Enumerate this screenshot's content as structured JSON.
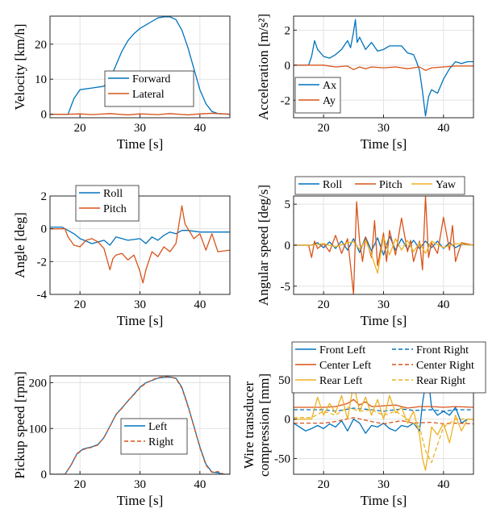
{
  "colors": {
    "blue": "#0072BD",
    "orange": "#D95319",
    "yellow": "#EDB120",
    "grid": "#e2e2e2",
    "frame": "#262626"
  },
  "chart_data": [
    {
      "id": "velocity",
      "type": "line",
      "ylabel": "Velocity [km/h]",
      "xlabel": "Time [s]",
      "xlim": [
        15,
        45
      ],
      "ylim": [
        -1,
        28
      ],
      "xticks": [
        20,
        30,
        40
      ],
      "yticks": [
        0,
        10,
        20
      ],
      "grid": true,
      "legend": "lower-center",
      "series": [
        {
          "name": "Forward",
          "color": "#0072BD",
          "style": "solid",
          "x": [
            15,
            18,
            19,
            20,
            22,
            24,
            25,
            26,
            27,
            28,
            29,
            30,
            31,
            32,
            33,
            34,
            35,
            36,
            37,
            38,
            39,
            40,
            41,
            42,
            43,
            44,
            45
          ],
          "y": [
            0,
            0,
            4.5,
            7,
            7.5,
            8,
            10,
            14,
            18,
            21,
            23,
            24.5,
            25.5,
            26.5,
            27.5,
            27.8,
            27.8,
            27,
            24,
            19,
            13,
            7,
            3,
            0.8,
            0.2,
            0.1,
            0
          ]
        },
        {
          "name": "Lateral",
          "color": "#D95319",
          "style": "solid",
          "x": [
            15,
            18,
            20,
            22,
            25,
            28,
            30,
            33,
            35,
            38,
            40,
            42,
            45
          ],
          "y": [
            0,
            0,
            0.1,
            -0.1,
            0.2,
            -0.2,
            0.1,
            -0.1,
            0.2,
            -0.2,
            0.1,
            0.3,
            0
          ]
        }
      ]
    },
    {
      "id": "acceleration",
      "type": "line",
      "ylabel": "Acceleration [m/s²]",
      "xlabel": "Time [s]",
      "xlim": [
        15,
        45
      ],
      "ylim": [
        -3,
        2.8
      ],
      "xticks": [
        20,
        30,
        40
      ],
      "yticks": [
        -2,
        0,
        2
      ],
      "grid": true,
      "legend": "lower-left",
      "series": [
        {
          "name": "Ax",
          "color": "#0072BD",
          "style": "solid",
          "x": [
            15,
            17.5,
            18,
            18.5,
            19,
            20,
            21,
            22,
            23,
            24,
            24.5,
            25,
            25.3,
            25.6,
            26,
            27,
            28,
            29,
            30,
            31,
            32,
            33,
            34,
            35,
            35.5,
            36,
            36.5,
            37,
            37.5,
            38,
            39,
            40,
            41,
            42,
            43,
            44,
            45
          ],
          "y": [
            0,
            0,
            0.5,
            1.4,
            0.9,
            0.5,
            0.4,
            0.6,
            0.9,
            1.4,
            1.0,
            1.9,
            2.6,
            1.3,
            1.6,
            0.9,
            1.3,
            0.8,
            0.9,
            1.1,
            1.1,
            1.1,
            0.7,
            0.6,
            0.2,
            -0.3,
            -1.5,
            -2.9,
            -1.8,
            -1.4,
            -1.6,
            -0.8,
            -0.2,
            0.2,
            0.1,
            0.2,
            0.2
          ]
        },
        {
          "name": "Ay",
          "color": "#D95319",
          "style": "solid",
          "x": [
            15,
            18,
            20,
            22,
            24,
            25,
            26,
            27,
            28,
            30,
            32,
            34,
            36,
            37,
            38,
            40,
            42,
            45
          ],
          "y": [
            0,
            0,
            0,
            -0.1,
            -0.05,
            -0.25,
            -0.1,
            -0.2,
            -0.1,
            -0.15,
            -0.1,
            -0.2,
            -0.1,
            -0.3,
            -0.15,
            -0.1,
            -0.05,
            -0.05
          ]
        }
      ]
    },
    {
      "id": "angle",
      "type": "line",
      "ylabel": "Angle [deg]",
      "xlabel": "Time [s]",
      "xlim": [
        15,
        45
      ],
      "ylim": [
        -4,
        2
      ],
      "xticks": [
        20,
        30,
        40
      ],
      "yticks": [
        -4,
        -2,
        0,
        2
      ],
      "grid": true,
      "legend": "top-left",
      "series": [
        {
          "name": "Roll",
          "color": "#0072BD",
          "style": "solid",
          "x": [
            15,
            17,
            18,
            19,
            20,
            22,
            24,
            25,
            26,
            28,
            30,
            31,
            32,
            33,
            34,
            35,
            36,
            37,
            38,
            40,
            42,
            45
          ],
          "y": [
            0.1,
            0.1,
            -0.1,
            -0.3,
            -0.6,
            -0.9,
            -0.7,
            -1.0,
            -0.5,
            -0.7,
            -0.6,
            -0.9,
            -0.5,
            -0.7,
            -0.4,
            -0.2,
            -0.3,
            -0.1,
            -0.1,
            -0.2,
            -0.2,
            -0.2
          ]
        },
        {
          "name": "Pitch",
          "color": "#D95319",
          "style": "solid",
          "x": [
            15,
            17.5,
            18,
            19,
            20,
            21,
            22,
            23,
            24,
            25,
            25.5,
            26,
            27,
            28,
            29,
            30,
            30.5,
            31,
            32,
            33,
            34,
            35,
            36,
            37,
            37.5,
            38,
            39,
            40,
            41,
            42,
            43,
            45
          ],
          "y": [
            0,
            0,
            -0.5,
            -1.0,
            -1.1,
            -0.7,
            -0.6,
            -0.8,
            -1.2,
            -2.5,
            -1.8,
            -1.6,
            -1.5,
            -1.9,
            -1.6,
            -2.6,
            -3.3,
            -2.5,
            -1.4,
            -1.7,
            -1.1,
            -1.4,
            -0.9,
            1.4,
            0.3,
            0.0,
            -0.6,
            -0.3,
            -1.3,
            -0.3,
            -1.4,
            -1.3
          ]
        }
      ]
    },
    {
      "id": "angular_speed",
      "type": "line",
      "ylabel": "Angular speed [deg/s]",
      "xlabel": "Time [s]",
      "xlim": [
        15,
        45
      ],
      "ylim": [
        -6,
        6
      ],
      "xticks": [
        20,
        30,
        40
      ],
      "yticks": [
        -5,
        0,
        5
      ],
      "grid": true,
      "legend": "top",
      "series": [
        {
          "name": "Roll",
          "color": "#0072BD",
          "style": "solid",
          "x": [
            15,
            18,
            19,
            20,
            21,
            22,
            23,
            24,
            25,
            26,
            27,
            28,
            29,
            30,
            31,
            32,
            33,
            34,
            35,
            36,
            37,
            38,
            39,
            40,
            41,
            42,
            43,
            45
          ],
          "y": [
            0,
            0,
            0.3,
            -0.3,
            0.4,
            -0.4,
            0.5,
            -0.6,
            0.8,
            -0.9,
            1.0,
            -0.7,
            0.9,
            -1.2,
            1.1,
            -0.6,
            0.8,
            -0.5,
            0.6,
            -0.4,
            0.5,
            -0.3,
            0.5,
            -0.4,
            0.3,
            -0.3,
            0.1,
            0
          ]
        },
        {
          "name": "Pitch",
          "color": "#D95319",
          "style": "solid",
          "x": [
            15,
            17.5,
            18,
            18.5,
            19,
            20,
            21,
            22,
            23,
            24,
            24.5,
            25,
            25.5,
            26,
            26.5,
            27,
            28,
            28.5,
            29,
            30,
            30.5,
            31,
            32,
            33,
            34,
            34.5,
            35,
            36,
            36.5,
            37,
            37.5,
            38,
            39,
            40,
            41,
            41.5,
            42,
            43,
            45
          ],
          "y": [
            0,
            0,
            -1.5,
            0.5,
            -0.4,
            0.2,
            -0.8,
            1.2,
            -1.0,
            0.8,
            -2.5,
            -6.0,
            5.3,
            0.5,
            -2.0,
            1.0,
            -1.5,
            3.0,
            -2.5,
            1.5,
            -2.0,
            1.8,
            -1.2,
            3.3,
            -0.8,
            0.6,
            -2.0,
            0.5,
            -3.0,
            6.0,
            -1.5,
            0.3,
            -1.0,
            3.4,
            -0.6,
            2.4,
            -2.0,
            0.3,
            0
          ]
        },
        {
          "name": "Yaw",
          "color": "#EDB120",
          "style": "solid",
          "x": [
            15,
            18,
            20,
            22,
            24,
            25,
            26,
            27,
            28,
            29,
            30,
            31,
            32,
            33,
            34,
            35,
            36,
            37,
            38,
            40,
            42,
            45
          ],
          "y": [
            0,
            0,
            0.2,
            -0.2,
            0.3,
            0.4,
            -0.5,
            0.6,
            -1.2,
            -3.4,
            1.0,
            -1.2,
            0.8,
            -0.6,
            0.6,
            -0.8,
            0.3,
            -1.0,
            0.5,
            -0.3,
            0.2,
            0
          ]
        }
      ]
    },
    {
      "id": "pickup_speed",
      "type": "line",
      "ylabel": "Pickup speed [rpm]",
      "xlabel": "Time [s]",
      "xlim": [
        15,
        45
      ],
      "ylim": [
        0,
        215
      ],
      "xticks": [
        20,
        30,
        40
      ],
      "yticks": [
        0,
        100,
        200
      ],
      "grid": true,
      "legend": "lower-center",
      "series": [
        {
          "name": "Left",
          "color": "#0072BD",
          "style": "solid",
          "x": [
            15,
            17.5,
            18.5,
            19.5,
            20.5,
            22,
            23,
            24,
            25,
            26,
            27,
            28,
            29,
            30,
            31,
            32,
            33,
            34,
            35,
            36,
            37,
            38,
            39,
            40,
            41,
            42,
            43,
            44,
            45
          ],
          "y": [
            0,
            0,
            20,
            45,
            55,
            60,
            65,
            80,
            105,
            130,
            145,
            160,
            175,
            190,
            200,
            205,
            210,
            212,
            212,
            210,
            190,
            150,
            105,
            60,
            22,
            5,
            3,
            0,
            0
          ]
        },
        {
          "name": "Right",
          "color": "#D95319",
          "style": "dashed",
          "x": [
            15,
            17.5,
            18.5,
            19.5,
            20.5,
            22,
            23,
            24,
            25,
            26,
            27,
            28,
            29,
            30,
            31,
            32,
            33,
            34,
            35,
            36,
            37,
            38,
            39,
            40,
            41,
            42,
            43,
            44,
            45
          ],
          "y": [
            0,
            0,
            19,
            44,
            54,
            59,
            64,
            81,
            104,
            131,
            144,
            161,
            174,
            189,
            199,
            206,
            211,
            213,
            213,
            209,
            188,
            148,
            104,
            58,
            20,
            4,
            6,
            0,
            0
          ]
        }
      ]
    },
    {
      "id": "wire_transducer",
      "type": "line",
      "ylabel": "Wire transducer compression [mm]",
      "xlabel": "Time [s]",
      "xlim": [
        15,
        45
      ],
      "ylim": [
        -70,
        55
      ],
      "xticks": [
        20,
        30,
        40
      ],
      "yticks": [
        -50,
        0,
        50
      ],
      "grid": true,
      "legend": "above",
      "series": [
        {
          "name": "Front Left",
          "color": "#0072BD",
          "style": "solid",
          "x": [
            15,
            16,
            17,
            18,
            19,
            20,
            21,
            22,
            23,
            24,
            25,
            26,
            27,
            28,
            29,
            30,
            31,
            32,
            33,
            34,
            35,
            36,
            36.5,
            37,
            37.5,
            38,
            39,
            40,
            41,
            42,
            43,
            44,
            45
          ],
          "y": [
            -5,
            -10,
            -15,
            -12,
            -8,
            -12,
            -6,
            -10,
            -2,
            -15,
            0,
            -5,
            -18,
            -8,
            -10,
            -5,
            -12,
            -15,
            -8,
            -10,
            -5,
            -15,
            20,
            45,
            50,
            15,
            5,
            10,
            5,
            15,
            -5,
            0,
            0
          ]
        },
        {
          "name": "Front Right",
          "color": "#0072BD",
          "style": "dashed",
          "x": [
            15,
            20,
            22,
            25,
            28,
            30,
            33,
            35,
            38,
            40,
            42,
            45
          ],
          "y": [
            12,
            12,
            10,
            14,
            12,
            10,
            13,
            11,
            12,
            10,
            12,
            12
          ]
        },
        {
          "name": "Center Left",
          "color": "#D95319",
          "style": "solid",
          "x": [
            15,
            20,
            22,
            24,
            25,
            26,
            27,
            28,
            30,
            32,
            34,
            36,
            38,
            40,
            42,
            45
          ],
          "y": [
            15,
            15,
            16,
            20,
            25,
            18,
            22,
            16,
            17,
            18,
            14,
            16,
            16,
            15,
            16,
            15
          ]
        },
        {
          "name": "Center Right",
          "color": "#D95319",
          "style": "dashed",
          "x": [
            15,
            20,
            22,
            25,
            28,
            30,
            33,
            35,
            38,
            40,
            42,
            45
          ],
          "y": [
            -5,
            -5,
            -3,
            2,
            -3,
            -6,
            -2,
            -5,
            -4,
            -6,
            -5,
            -6
          ]
        },
        {
          "name": "Rear Left",
          "color": "#EDB120",
          "style": "solid",
          "x": [
            15,
            18,
            19,
            20,
            21,
            22,
            23,
            24,
            25,
            26,
            27,
            28,
            29,
            30,
            31,
            32,
            33,
            34,
            35,
            36,
            36.5,
            37,
            37.5,
            38,
            39,
            40,
            41,
            42,
            43,
            44,
            45
          ],
          "y": [
            0,
            0,
            28,
            5,
            20,
            8,
            30,
            0,
            45,
            10,
            28,
            5,
            25,
            0,
            30,
            8,
            15,
            -5,
            10,
            -20,
            -50,
            -65,
            -40,
            -10,
            -20,
            -5,
            -30,
            5,
            -15,
            0,
            0
          ]
        },
        {
          "name": "Rear Right",
          "color": "#EDB120",
          "style": "dashed",
          "x": [
            15,
            18,
            20,
            22,
            24,
            26,
            28,
            30,
            32,
            34,
            36,
            37,
            38,
            40,
            42,
            45
          ],
          "y": [
            2,
            2,
            10,
            5,
            15,
            10,
            12,
            5,
            10,
            0,
            -10,
            -40,
            -55,
            -10,
            0,
            0
          ]
        }
      ]
    }
  ]
}
